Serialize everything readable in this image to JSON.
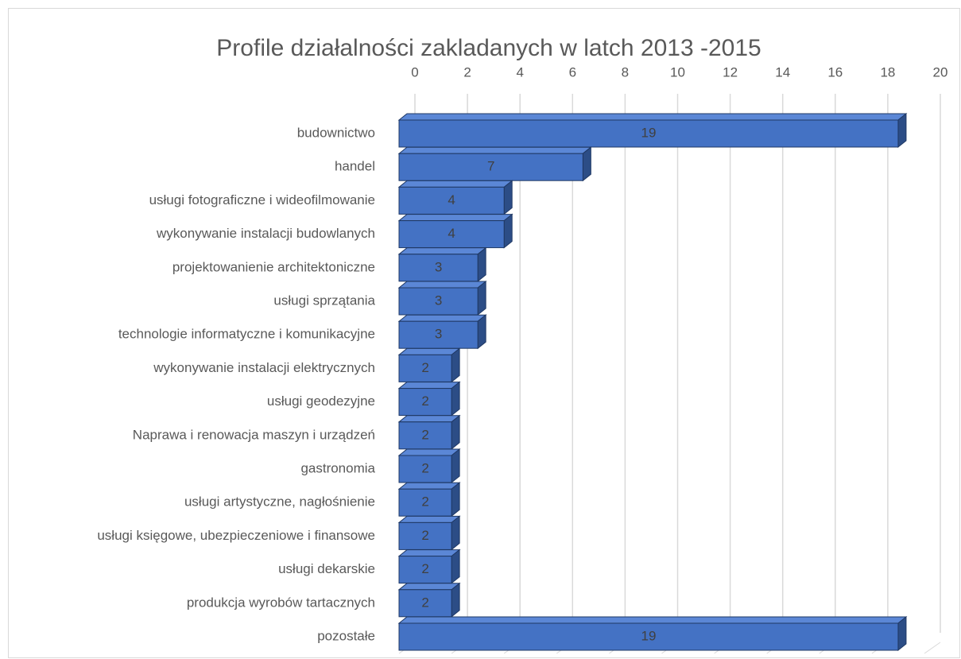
{
  "chart_data": {
    "type": "bar",
    "orientation": "horizontal",
    "title": "Profile działalności zakladanych w latch 2013 -2015",
    "categories": [
      "budownictwo",
      "handel",
      "usługi fotograficzne i wideofilmowanie",
      "wykonywanie instalacji budowlanych",
      "projektowanienie architektoniczne",
      "usługi sprzątania",
      "technologie informatyczne i komunikacyjne",
      "wykonywanie instalacji elektrycznych",
      "usługi geodezyjne",
      "Naprawa i renowacja maszyn i urządzeń",
      "gastronomia",
      "usługi artystyczne, nagłośnienie",
      "usługi księgowe, ubezpieczeniowe i finansowe",
      "usługi dekarskie",
      "produkcja wyrobów tartacznych",
      "pozostałe"
    ],
    "values": [
      19,
      7,
      4,
      4,
      3,
      3,
      3,
      2,
      2,
      2,
      2,
      2,
      2,
      2,
      2,
      19
    ],
    "color": "#4472c4",
    "xlim": [
      0,
      20
    ],
    "xticks": [
      0,
      2,
      4,
      6,
      8,
      10,
      12,
      14,
      16,
      18,
      20
    ],
    "grid": true
  }
}
